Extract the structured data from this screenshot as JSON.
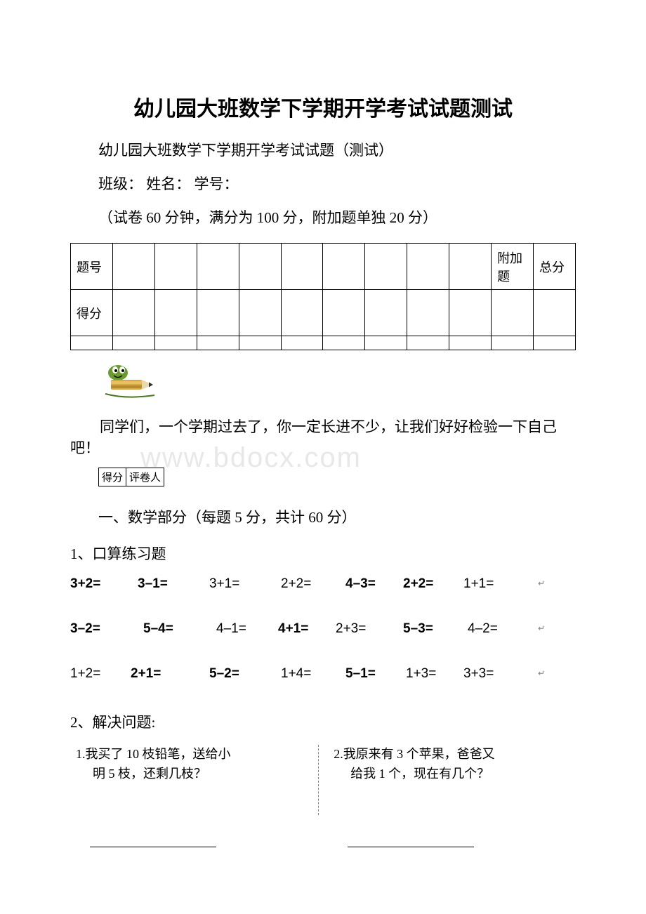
{
  "title": "幼儿园大班数学下学期开学考试试题测试",
  "subtitle": "幼儿园大班数学下学期开学考试试题（测试）",
  "info_line": "班级：  姓名：  学号：",
  "time_line": "（试卷 60 分钟，满分为 100 分，附加题单独 20 分）",
  "score_table": {
    "row1": [
      "题号",
      "",
      "",
      "",
      "",
      "",
      "",
      "",
      "",
      "",
      "附加题",
      "总分"
    ],
    "row2_first": "得分"
  },
  "encourage": "同学们，一个学期过去了，你一定长进不少，让我们好好检验一下自己吧！",
  "mini_table": {
    "c1": "得分",
    "c2": "评卷人"
  },
  "section1": "一、数学部分（每题 5 分，共计 60 分）",
  "q1": "1、口算练习题",
  "calc": {
    "r1": [
      "3+2=",
      "3–1=",
      "3+1=",
      "2+2=",
      "4–3=",
      "2+2=",
      "1+1="
    ],
    "r2": [
      "3–2=",
      "5–4=",
      "4–1=",
      "4+1=",
      "2+3=",
      "5–3=",
      "4–2="
    ],
    "r3": [
      "1+2=",
      "2+1=",
      "5–2=",
      "1+4=",
      "5–1=",
      "1+3=",
      "3+3="
    ],
    "bold": {
      "r1": [
        true,
        true,
        false,
        false,
        true,
        true,
        false
      ],
      "r2": [
        true,
        true,
        false,
        true,
        false,
        true,
        false
      ],
      "r3": [
        false,
        true,
        true,
        false,
        true,
        false,
        false
      ]
    }
  },
  "q2": "2、解决问题:",
  "wp": {
    "p1_l1": "1.我买了 10 枝铅笔，送给小",
    "p1_l2": "明 5 枝，还剩几枝？",
    "p2_l1": "2.我原来有 3 个苹果，爸爸又",
    "p2_l2": "给我 1 个，现在有几个？"
  },
  "watermark": "www.bdocx.com",
  "col_widths_calc": [
    [
      0,
      96,
      198,
      300,
      392,
      474,
      560,
      674
    ],
    [
      0,
      104,
      208,
      296,
      378,
      474,
      566,
      674
    ],
    [
      0,
      86,
      198,
      300,
      392,
      478,
      560,
      674
    ]
  ],
  "ans_line_width": 180,
  "colors": {
    "text": "#000000",
    "bg": "#ffffff",
    "watermark": "#e8e8e8",
    "dash": "#808080"
  }
}
